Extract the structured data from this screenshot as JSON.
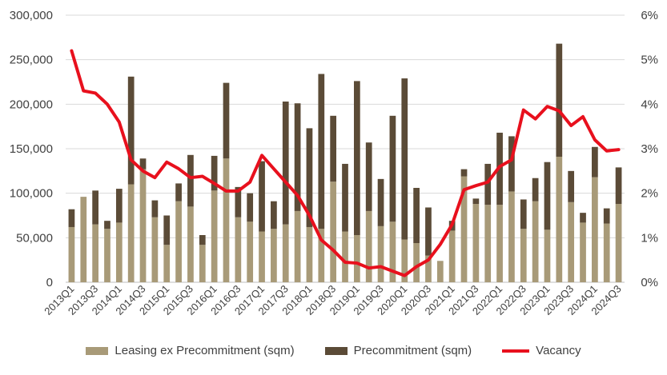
{
  "chart_data": {
    "type": "bar+line",
    "categories": [
      "2013Q1",
      "2013Q2",
      "2013Q3",
      "2013Q4",
      "2014Q1",
      "2014Q2",
      "2014Q3",
      "2014Q4",
      "2015Q1",
      "2015Q2",
      "2015Q3",
      "2015Q4",
      "2016Q1",
      "2016Q2",
      "2016Q3",
      "2016Q4",
      "2017Q1",
      "2017Q2",
      "2017Q3",
      "2017Q4",
      "2018Q1",
      "2018Q2",
      "2018Q3",
      "2018Q4",
      "2019Q1",
      "2019Q2",
      "2019Q3",
      "2019Q4",
      "2020Q1",
      "2020Q2",
      "2020Q3",
      "2020Q4",
      "2021Q1",
      "2021Q2",
      "2021Q3",
      "2021Q4",
      "2022Q1",
      "2022Q2",
      "2022Q3",
      "2022Q4",
      "2023Q1",
      "2023Q2",
      "2023Q3",
      "2023Q4",
      "2024Q1",
      "2024Q2",
      "2024Q3"
    ],
    "tick_labels": [
      "2013Q1",
      "",
      "2013Q3",
      "",
      "2014Q1",
      "",
      "2014Q3",
      "",
      "2015Q1",
      "",
      "2015Q3",
      "",
      "2016Q1",
      "",
      "2016Q3",
      "",
      "2017Q1",
      "",
      "2017Q3",
      "",
      "2018Q1",
      "",
      "2018Q3",
      "",
      "2019Q1",
      "",
      "2019Q3",
      "",
      "2020Q1",
      "",
      "2020Q3",
      "",
      "2021Q1",
      "",
      "2021Q3",
      "",
      "2022Q1",
      "",
      "2022Q3",
      "",
      "2023Q1",
      "",
      "2023Q3",
      "",
      "2024Q1",
      "",
      "2024Q3"
    ],
    "series": [
      {
        "name": "Leasing ex Precommitment (sqm)",
        "type": "stacked-bar",
        "color": "#a89a78",
        "values": [
          62000,
          96000,
          65000,
          60000,
          67000,
          110000,
          127000,
          73000,
          42000,
          91000,
          85000,
          42000,
          103000,
          139000,
          73000,
          68000,
          57000,
          60000,
          65000,
          80000,
          62000,
          60000,
          113000,
          57000,
          53000,
          80000,
          63000,
          68000,
          48000,
          44000,
          30000,
          24000,
          58000,
          119000,
          88000,
          87000,
          87000,
          102000,
          60000,
          91000,
          59000,
          141000,
          90000,
          67000,
          118000,
          66000,
          88000
        ]
      },
      {
        "name": "Precommitment (sqm)",
        "type": "stacked-bar",
        "color": "#5b4b37",
        "values": [
          20000,
          0,
          38000,
          9000,
          38000,
          121000,
          12000,
          19000,
          33000,
          20000,
          58000,
          11000,
          39000,
          85000,
          34000,
          32000,
          79000,
          31000,
          138000,
          121000,
          111000,
          174000,
          74000,
          76000,
          173000,
          77000,
          53000,
          119000,
          181000,
          62000,
          54000,
          0,
          11000,
          8000,
          6000,
          46000,
          81000,
          62000,
          33000,
          26000,
          76000,
          127000,
          35000,
          11000,
          34000,
          17000,
          41000
        ]
      },
      {
        "name": "Vacancy",
        "type": "line",
        "color": "#e8101d",
        "axis": "right",
        "values": [
          5.2,
          4.3,
          4.25,
          4.0,
          3.6,
          2.75,
          2.5,
          2.35,
          2.7,
          2.55,
          2.35,
          2.38,
          2.22,
          2.05,
          2.05,
          2.25,
          2.85,
          2.55,
          2.25,
          1.95,
          1.5,
          0.95,
          0.72,
          0.45,
          0.43,
          0.32,
          0.35,
          0.25,
          0.15,
          0.35,
          0.5,
          0.85,
          1.3,
          2.08,
          2.17,
          2.25,
          2.6,
          2.75,
          3.87,
          3.67,
          3.95,
          3.85,
          3.52,
          3.72,
          3.2,
          2.95,
          2.98
        ]
      }
    ],
    "y_left": {
      "min": 0,
      "max": 300000,
      "ticks": [
        "0",
        "50,000",
        "100,000",
        "150,000",
        "200,000",
        "250,000",
        "300,000"
      ]
    },
    "y_right": {
      "min": 0,
      "max": 6,
      "ticks": [
        "0%",
        "1%",
        "2%",
        "3%",
        "4%",
        "5%",
        "6%"
      ]
    },
    "grid": true,
    "legend_position": "bottom",
    "title": "",
    "xlabel": "",
    "ylabel": ""
  }
}
